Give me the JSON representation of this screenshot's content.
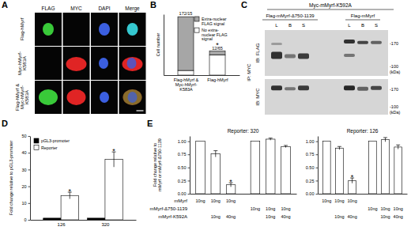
{
  "images": [
    {
      "panel": "A",
      "columns": [
        "FLAG",
        "MYC",
        "DAPI",
        "Merge"
      ],
      "rows": [
        "Flag-hMyrf",
        "Myc-hMyrf-K583A",
        "Flag-hMyrf & Myc-hMyrf-K583A"
      ]
    },
    {
      "panel": "C",
      "title": "Myc-mMyrf-K592A",
      "groups": [
        {
          "label": "Flag-mMyrf-Δ750-1139",
          "lanes": [
            "L",
            "B",
            "S"
          ]
        },
        {
          "label": "Flag-mMyrf",
          "lanes": [
            "L",
            "B",
            "S"
          ]
        }
      ],
      "ip": "IP: MYC",
      "blots": [
        "IB: FLAG",
        "IB: MYC"
      ],
      "markers": [
        {
          "value": 170,
          "label": "-170"
        },
        {
          "value": 100,
          "label": "-100"
        }
      ],
      "unit": "(kDa)"
    }
  ],
  "chart_data": [
    {
      "type": "bar",
      "panel": "B",
      "stacked": true,
      "categories": [
        "Flag-hMyrf & Myc-hMyrf-K583A",
        "Flag-hMyrf"
      ],
      "series": [
        {
          "name": "No extra-nuclear FLAG signal",
          "color": "#ffffff",
          "values": [
            15,
            65
          ]
        },
        {
          "name": "Extra-nuclear FLAG signal",
          "color": "#a6a6a6",
          "values": [
            172,
            12
          ]
        }
      ],
      "y_label": "Cell number",
      "ylim": [
        0,
        195
      ],
      "tick_labels": "x",
      "bar_labels": [
        "172/15",
        "12/65"
      ],
      "annotations": [
        null,
        "*"
      ],
      "legend": "top-right"
    },
    {
      "type": "bar",
      "panel": "D",
      "categories": [
        "126",
        "320"
      ],
      "series": [
        {
          "name": "pGL3-promoter",
          "color": "#000000",
          "values": [
            1,
            1
          ]
        },
        {
          "name": "Reporter",
          "color": "#ffffff",
          "values": [
            14.5,
            36
          ],
          "errors": [
            2,
            4.5
          ],
          "annotations": [
            "*",
            "*"
          ]
        }
      ],
      "y_label": "Fold change relative to pGL3-promoter",
      "ylim": [
        0,
        50
      ],
      "yticks": [
        0,
        10,
        20,
        30,
        40,
        50
      ],
      "legend": "top-left"
    },
    {
      "type": "bar",
      "panel": "E",
      "title": "Reporter: 320",
      "y_label": "Fold change relative to mMyrf or mMyrf-Δ750-1139",
      "categories": [
        null,
        null,
        null,
        null,
        null,
        null
      ],
      "values": [
        1,
        0.76,
        0.17,
        1,
        1.04,
        0.9
      ],
      "errors": [
        null,
        0.06,
        0.04,
        null,
        0.02,
        0.02
      ],
      "annotations": [
        null,
        null,
        "*",
        null,
        null,
        null
      ],
      "color": "#ffffff",
      "ylim": [
        0,
        1.1
      ],
      "yticks": [
        {
          "value": 0,
          "label": "0.00"
        },
        {
          "value": 0.25,
          "label": "0.25"
        },
        {
          "value": 0.5,
          "label": "0.50"
        },
        {
          "value": 0.75,
          "label": "0.75"
        },
        {
          "value": 1,
          "label": "1.00"
        }
      ],
      "table": {
        "row_labels": [
          "mMyrf",
          "mMyrf-Δ750-1139",
          "mMyrf-K592A"
        ],
        "cells": [
          [
            "10ng",
            "10ng",
            "10ng",
            null,
            null,
            null
          ],
          [
            null,
            null,
            null,
            "10ng",
            "10ng",
            "10ng"
          ],
          [
            null,
            "10ng",
            "40ng",
            null,
            "10ng",
            "40ng"
          ]
        ]
      }
    },
    {
      "type": "bar",
      "title": "Reporter: 126",
      "categories": [
        null,
        null,
        null,
        null,
        null,
        null
      ],
      "values": [
        1,
        0.87,
        0.25,
        1,
        1.03,
        0.89
      ],
      "errors": [
        null,
        0.03,
        0.05,
        null,
        0.04,
        0.04
      ],
      "annotations": [
        null,
        null,
        "*",
        null,
        null,
        null
      ],
      "color": "#ffffff",
      "ylim": [
        0,
        1.1
      ],
      "yticks": [
        {
          "value": 0,
          "label": "0.00"
        },
        {
          "value": 0.25,
          "label": "0.25"
        },
        {
          "value": 0.5,
          "label": "0.50"
        },
        {
          "value": 0.75,
          "label": "0.75"
        },
        {
          "value": 1,
          "label": "1.00"
        }
      ],
      "table": {
        "cells": [
          [
            "10ng",
            "10ng",
            "10ng",
            null,
            null,
            null
          ],
          [
            null,
            null,
            null,
            "10ng",
            "10ng",
            "10ng"
          ],
          [
            null,
            "10ng",
            "40ng",
            null,
            "10ng",
            "40ng"
          ]
        ]
      }
    }
  ]
}
